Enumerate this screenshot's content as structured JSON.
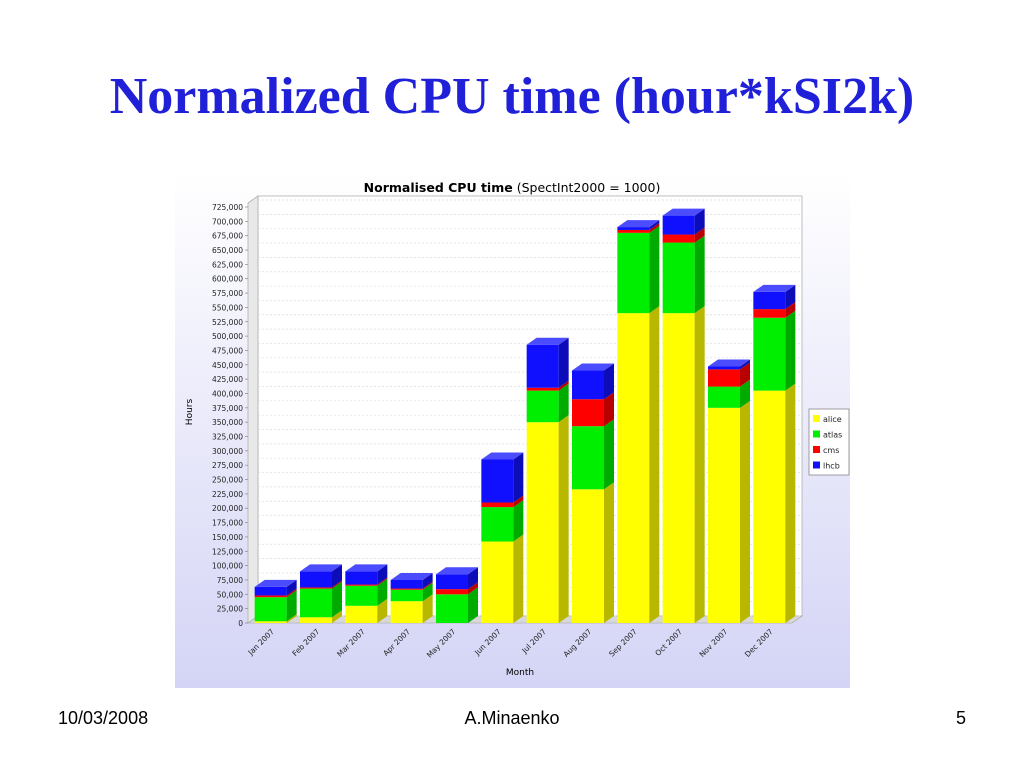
{
  "slide": {
    "title": "Normalized CPU time (hour*kSI2k)",
    "footer_date": "10/03/2008",
    "footer_author": "A.Minaenko",
    "page_number": "5"
  },
  "colors": {
    "title": "#2020d8",
    "alice": "#ffff00",
    "atlas": "#00ee00",
    "cms": "#ff0000",
    "lhcb": "#1010ff"
  },
  "chart_data": {
    "type": "bar",
    "stacked": true,
    "three_d": true,
    "title": "Normalised CPU time (SpectInt2000 = 1000)",
    "title_bold_part": "Normalised CPU time",
    "title_rest": " (SpectInt2000 = 1000)",
    "xlabel": "Month",
    "ylabel": "Hours",
    "ylim": [
      0,
      725000
    ],
    "yticks": [
      0,
      25000,
      50000,
      75000,
      100000,
      125000,
      150000,
      175000,
      200000,
      225000,
      250000,
      275000,
      300000,
      325000,
      350000,
      375000,
      400000,
      425000,
      450000,
      475000,
      500000,
      525000,
      550000,
      575000,
      600000,
      625000,
      650000,
      675000,
      700000,
      725000
    ],
    "ytick_labels": [
      "0",
      "25,000",
      "50,000",
      "75,000",
      "100,000",
      "125,000",
      "150,000",
      "175,000",
      "200,000",
      "225,000",
      "250,000",
      "275,000",
      "300,000",
      "325,000",
      "350,000",
      "375,000",
      "400,000",
      "425,000",
      "450,000",
      "475,000",
      "500,000",
      "525,000",
      "550,000",
      "575,000",
      "600,000",
      "625,000",
      "650,000",
      "675,000",
      "700,000",
      "725,000"
    ],
    "grid": true,
    "legend_position": "right",
    "categories": [
      "Jan 2007",
      "Feb 2007",
      "Mar 2007",
      "Apr 2007",
      "May 2007",
      "Jun 2007",
      "Jul 2007",
      "Aug 2007",
      "Sep 2007",
      "Oct 2007",
      "Nov 2007",
      "Dec 2007"
    ],
    "series": [
      {
        "name": "alice",
        "color": "#ffff00",
        "values": [
          3000,
          10000,
          30000,
          38000,
          0,
          142000,
          350000,
          233000,
          540000,
          540000,
          375000,
          405000
        ]
      },
      {
        "name": "atlas",
        "color": "#00ee00",
        "values": [
          42000,
          50000,
          35000,
          20000,
          50000,
          60000,
          55000,
          110000,
          140000,
          123000,
          37000,
          127000
        ]
      },
      {
        "name": "cms",
        "color": "#ff0000",
        "values": [
          3000,
          2000,
          2000,
          2000,
          9000,
          8000,
          5000,
          47000,
          5000,
          14000,
          30000,
          15000
        ]
      },
      {
        "name": "lhcb",
        "color": "#1010ff",
        "values": [
          15000,
          28000,
          23000,
          15000,
          26000,
          75000,
          75000,
          50000,
          5000,
          33000,
          5000,
          30000
        ]
      }
    ]
  }
}
